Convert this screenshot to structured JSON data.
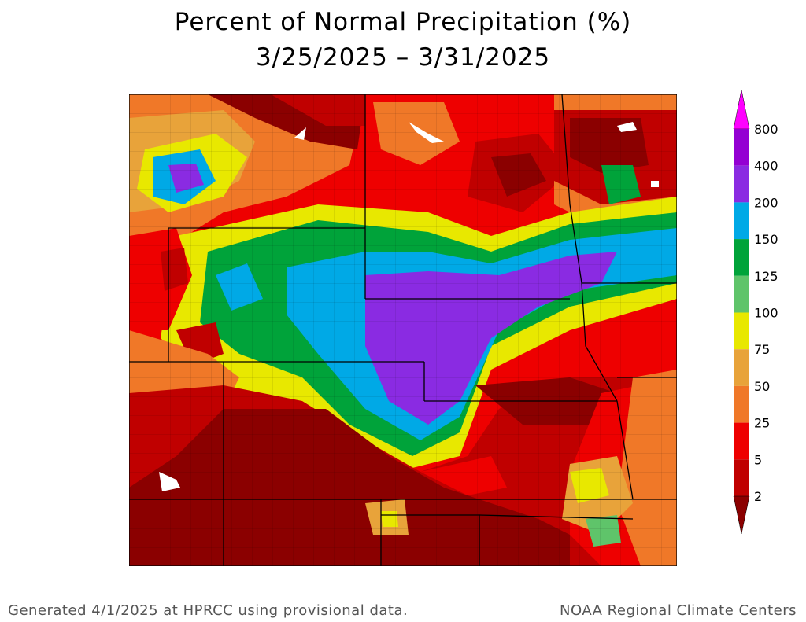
{
  "title": "Percent of Normal Precipitation (%)",
  "subtitle": "3/25/2025 – 3/31/2025",
  "legend": {
    "labels": [
      "800",
      "400",
      "200",
      "150",
      "125",
      "100",
      "75",
      "50",
      "25",
      "5",
      "2"
    ],
    "colors": {
      "above_800": "#ff00ff",
      "400_800": "#9400d3",
      "200_400": "#8a2be2",
      "150_200": "#00a9e6",
      "125_150": "#00a33a",
      "100_125": "#5fc46a",
      "75_100": "#e8e800",
      "50_75": "#e8a33a",
      "25_50": "#f07828",
      "5_25": "#ee0000",
      "2_5": "#c00000",
      "below_2": "#8b0000"
    }
  },
  "footer": {
    "left": "Generated 4/1/2025 at HPRCC using provisional data.",
    "right": "NOAA Regional Climate Centers"
  }
}
